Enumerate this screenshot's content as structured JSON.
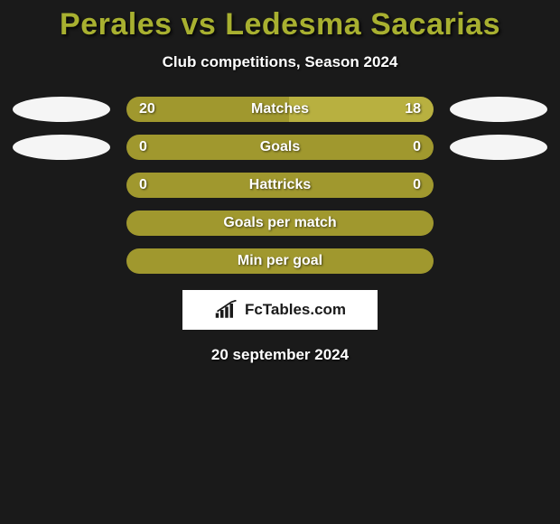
{
  "title": "Perales vs Ledesma Sacarias",
  "subtitle": "Club competitions, Season 2024",
  "date": "20 september 2024",
  "footer_brand": "FcTables.com",
  "colors": {
    "background": "#1a1a1a",
    "title": "#a8b030",
    "bar_primary": "#a8a030",
    "bar_secondary": "#b8b040",
    "text": "#ffffff",
    "bubble": "#f5f5f5",
    "footer_bg": "#ffffff"
  },
  "stats": [
    {
      "label": "Matches",
      "left_value": "20",
      "right_value": "18",
      "left_color": "#a0982e",
      "right_color": "#b8b040",
      "has_bubbles": true,
      "split": 0.53
    },
    {
      "label": "Goals",
      "left_value": "0",
      "right_value": "0",
      "left_color": "#a0982e",
      "right_color": "#a0982e",
      "has_bubbles": true,
      "split": 0.5
    },
    {
      "label": "Hattricks",
      "left_value": "0",
      "right_value": "0",
      "left_color": "#a0982e",
      "right_color": "#a0982e",
      "has_bubbles": false,
      "split": 0.5
    },
    {
      "label": "Goals per match",
      "left_value": "",
      "right_value": "",
      "left_color": "#a0982e",
      "right_color": "#a0982e",
      "has_bubbles": false,
      "split": 0.5
    },
    {
      "label": "Min per goal",
      "left_value": "",
      "right_value": "",
      "left_color": "#a0982e",
      "right_color": "#a0982e",
      "has_bubbles": false,
      "split": 0.5
    }
  ]
}
